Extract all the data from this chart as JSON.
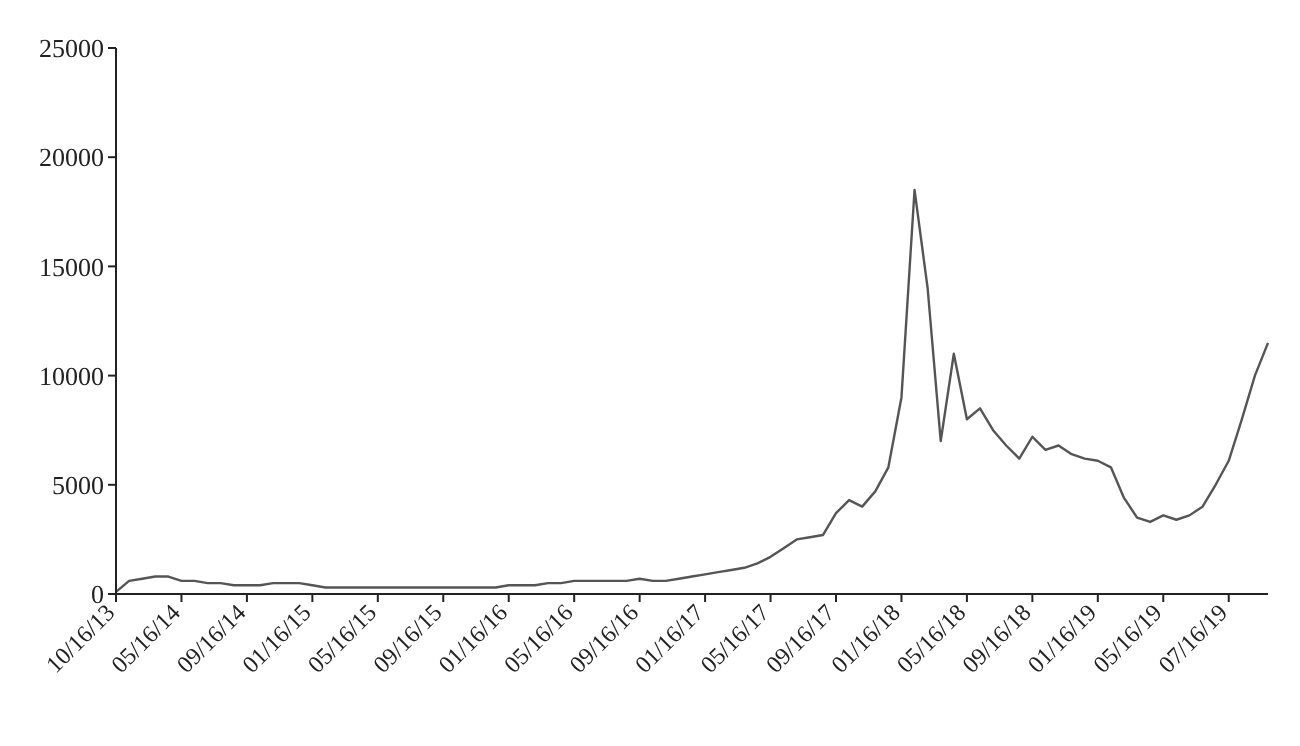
{
  "chart_data": {
    "type": "line",
    "categories": [
      "10/16/13",
      null,
      null,
      null,
      null,
      "05/16/14",
      null,
      null,
      null,
      null,
      "09/16/14",
      null,
      null,
      null,
      null,
      "01/16/15",
      null,
      null,
      null,
      null,
      "05/16/15",
      null,
      null,
      null,
      null,
      "09/16/15",
      null,
      null,
      null,
      null,
      "01/16/16",
      null,
      null,
      null,
      null,
      "05/16/16",
      null,
      null,
      null,
      null,
      "09/16/16",
      null,
      null,
      null,
      null,
      "01/16/17",
      null,
      null,
      null,
      null,
      "05/16/17",
      null,
      null,
      null,
      null,
      "09/16/17",
      null,
      null,
      null,
      null,
      "01/16/18",
      null,
      null,
      null,
      null,
      "05/16/18",
      null,
      null,
      null,
      null,
      "09/16/18",
      null,
      null,
      null,
      null,
      "01/16/19",
      null,
      null,
      null,
      null,
      "05/16/19",
      null,
      null,
      null,
      null,
      "07/16/19",
      null,
      null,
      null
    ],
    "series": [
      {
        "color": "#555555",
        "values": [
          100,
          600,
          700,
          800,
          800,
          600,
          600,
          500,
          500,
          400,
          400,
          400,
          500,
          500,
          500,
          400,
          300,
          300,
          300,
          300,
          300,
          300,
          300,
          300,
          300,
          300,
          300,
          300,
          300,
          300,
          400,
          400,
          400,
          500,
          500,
          600,
          600,
          600,
          600,
          600,
          700,
          600,
          600,
          700,
          800,
          900,
          1000,
          1100,
          1200,
          1400,
          1700,
          2100,
          2500,
          2600,
          2700,
          3700,
          4300,
          4000,
          4700,
          5800,
          9000,
          18500,
          14000,
          7000,
          11000,
          8000,
          8500,
          7500,
          6800,
          6200,
          7200,
          6600,
          6800,
          6400,
          6200,
          6100,
          5800,
          4400,
          3500,
          3300,
          3600,
          3400,
          3600,
          4000,
          5000,
          6100,
          8000,
          10000,
          11500
        ]
      }
    ],
    "ylim": [
      0,
      25000
    ],
    "yticks": [
      0,
      5000,
      10000,
      15000,
      20000,
      25000
    ],
    "grid": false,
    "legend": false,
    "marker": "none",
    "line_style": "solid"
  }
}
